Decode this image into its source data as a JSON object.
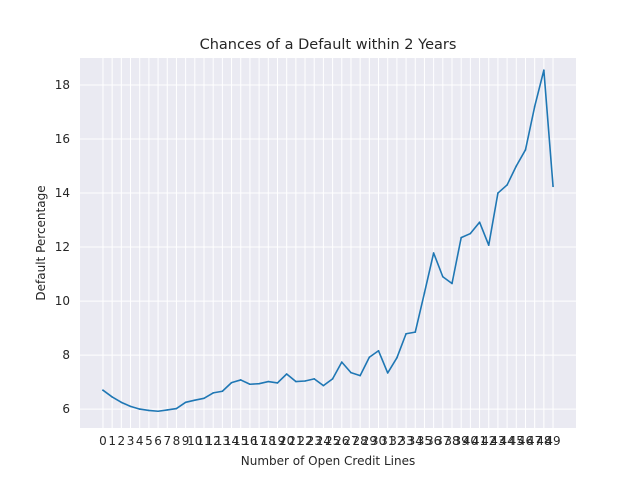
{
  "chart_data": {
    "type": "line",
    "title": "Chances of a Default within 2 Years",
    "xlabel": "Number of Open Credit Lines",
    "ylabel": "Default Percentage",
    "x": [
      0,
      1,
      2,
      3,
      4,
      5,
      6,
      7,
      8,
      9,
      10,
      11,
      12,
      13,
      14,
      15,
      16,
      17,
      18,
      19,
      20,
      21,
      22,
      23,
      24,
      25,
      26,
      27,
      28,
      29,
      30,
      31,
      32,
      33,
      34,
      35,
      36,
      37,
      38,
      39,
      40,
      41,
      42,
      43,
      44,
      45,
      46,
      47,
      48,
      49
    ],
    "series": [
      {
        "color": "#1f77b4",
        "values": [
          6.7,
          6.45,
          6.25,
          6.1,
          6.0,
          5.95,
          5.92,
          5.97,
          6.02,
          6.25,
          6.33,
          6.4,
          6.6,
          6.66,
          6.98,
          7.08,
          6.92,
          6.94,
          7.02,
          6.97,
          7.3,
          7.02,
          7.04,
          7.12,
          6.87,
          7.12,
          7.74,
          7.35,
          7.24,
          7.92,
          8.16,
          7.34,
          7.9,
          8.79,
          8.85,
          10.3,
          11.78,
          10.9,
          10.65,
          12.35,
          12.5,
          12.92,
          12.07,
          14.0,
          14.3,
          15.0,
          15.6,
          17.2,
          18.55,
          14.25
        ]
      }
    ],
    "xlim": [
      -2.5,
      51.5
    ],
    "ylim": [
      5.3,
      19.0
    ],
    "yticks": [
      6,
      8,
      10,
      12,
      14,
      16,
      18
    ],
    "xticks": [
      0,
      1,
      2,
      3,
      4,
      5,
      6,
      7,
      8,
      9,
      10,
      11,
      12,
      13,
      14,
      15,
      16,
      17,
      18,
      19,
      20,
      21,
      22,
      23,
      24,
      25,
      26,
      27,
      28,
      29,
      30,
      31,
      32,
      33,
      34,
      35,
      36,
      37,
      38,
      39,
      40,
      41,
      42,
      43,
      44,
      45,
      46,
      47,
      48,
      49
    ],
    "grid": true,
    "background": "#eaeaf2",
    "grid_color": "#ffffff"
  }
}
